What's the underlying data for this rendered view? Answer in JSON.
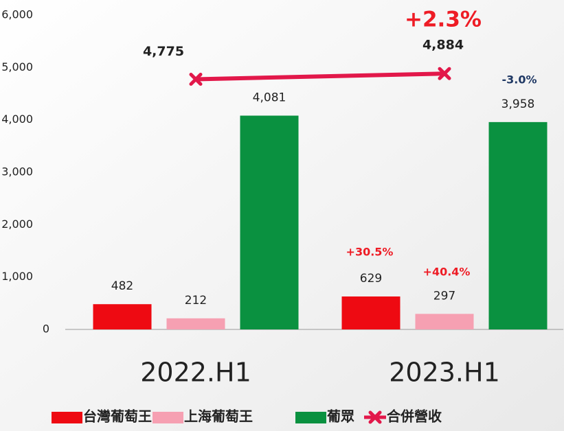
{
  "chart_data": {
    "type": "bar",
    "categories": [
      "2022.H1",
      "2023.H1"
    ],
    "series": [
      {
        "name": "台灣葡萄王",
        "type": "bar",
        "color": "#ee0a12",
        "values": [
          482,
          629
        ],
        "value_labels": [
          "482",
          "629"
        ]
      },
      {
        "name": "上海葡萄王",
        "type": "bar",
        "color": "#f6a0b2",
        "values": [
          212,
          297
        ],
        "value_labels": [
          "212",
          "297"
        ]
      },
      {
        "name": "葡眾",
        "type": "bar",
        "color": "#0a9140",
        "values": [
          4081,
          3958
        ],
        "value_labels": [
          "4,081",
          "3,958"
        ]
      },
      {
        "name": "合併營收",
        "type": "line",
        "color": "#e2184a",
        "values": [
          4775,
          4884
        ],
        "value_labels": [
          "4,775",
          "4,884"
        ]
      }
    ],
    "annotations": [
      {
        "text": "+2.3%",
        "color": "#ee1c25"
      },
      {
        "text": "-3.0%",
        "color": "#1f3864"
      },
      {
        "text": "+30.5%",
        "color": "#ee1c25"
      },
      {
        "text": "+40.4%",
        "color": "#ee1c25"
      }
    ],
    "ylim": [
      0,
      6000
    ],
    "yticks": [
      0,
      {
        "value": 1000,
        "label": "1,000"
      },
      {
        "value": 2000,
        "label": "2,000"
      },
      {
        "value": 3000,
        "label": "3,000"
      },
      {
        "value": 4000,
        "label": "4,000"
      },
      {
        "value": 5000,
        "label": "5,000"
      },
      {
        "value": 6000,
        "label": "6,000"
      }
    ],
    "grid": false
  }
}
